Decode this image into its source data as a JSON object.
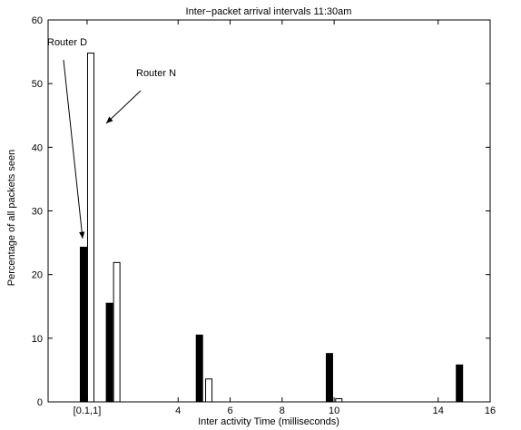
{
  "chart_data": {
    "type": "bar",
    "title": "Inter−packet arrival intervals 11:30am",
    "xlabel": "Inter activity Time (milliseconds)",
    "ylabel": "Percentage of all packets seen",
    "xlim": [
      -1,
      16
    ],
    "ylim": [
      0,
      60
    ],
    "yticks": [
      0,
      10,
      20,
      30,
      40,
      50,
      60
    ],
    "xticks": [
      {
        "value": 0.5,
        "label": "[0.1,1]"
      },
      {
        "value": 4,
        "label": "4"
      },
      {
        "value": 6,
        "label": "6"
      },
      {
        "value": 8,
        "label": "8"
      },
      {
        "value": 10,
        "label": "10"
      },
      {
        "value": 14,
        "label": "14"
      },
      {
        "value": 16,
        "label": "16"
      }
    ],
    "series": [
      {
        "fill": "#000000",
        "points": [
          {
            "x": 0.36,
            "y": 24.3
          },
          {
            "x": 1.36,
            "y": 15.5
          },
          {
            "x": 4.82,
            "y": 10.5
          },
          {
            "x": 9.82,
            "y": 7.6
          },
          {
            "x": 14.82,
            "y": 5.8
          }
        ]
      },
      {
        "fill": "#ffffff",
        "points": [
          {
            "x": 0.64,
            "y": 54.8
          },
          {
            "x": 1.64,
            "y": 21.9
          },
          {
            "x": 5.18,
            "y": 3.6
          },
          {
            "x": 10.18,
            "y": 0.5
          },
          {
            "x": 15.18,
            "y": 0
          }
        ]
      }
    ],
    "annotations": [
      {
        "text": "Router D"
      },
      {
        "text": "Router N"
      }
    ]
  }
}
